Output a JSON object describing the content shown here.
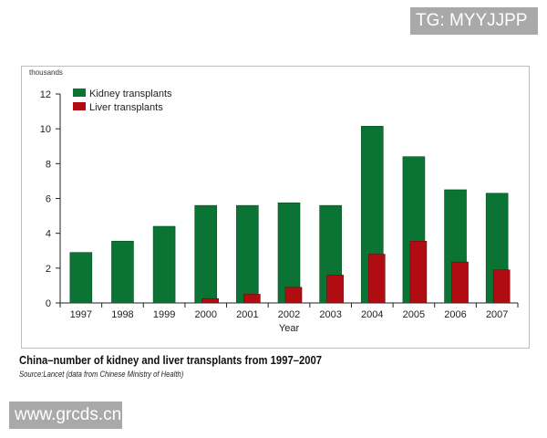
{
  "watermarks": {
    "top_right": "TG: MYYJJPP",
    "bottom_left": "www.grcds.cn"
  },
  "caption": "China–number of kidney and liver transplants from 1997–2007",
  "source": "Source:Lancet (data from Chinese Ministry of Health)",
  "chart_data": {
    "type": "bar",
    "title": "China–number of kidney and liver transplants from 1997–2007",
    "xlabel": "Year",
    "ylabel": "thousands",
    "ylim": [
      0,
      12
    ],
    "yticks": [
      "0",
      "2",
      "4",
      "6",
      "8",
      "10",
      "12"
    ],
    "grid": false,
    "legend_position": "top-left",
    "categories": [
      "1997",
      "1998",
      "1999",
      "2000",
      "2001",
      "2002",
      "2003",
      "2004",
      "2005",
      "2006",
      "2007"
    ],
    "series": [
      {
        "name": "Kidney transplants",
        "color": "#0b7334",
        "values": [
          2.9,
          3.55,
          4.4,
          5.6,
          5.6,
          5.75,
          5.6,
          10.15,
          8.4,
          6.5,
          6.3
        ]
      },
      {
        "name": "Liver transplants",
        "color": "#b00c12",
        "values": [
          0,
          0,
          0,
          0.25,
          0.5,
          0.9,
          1.6,
          2.8,
          3.55,
          2.35,
          1.9
        ]
      }
    ]
  }
}
